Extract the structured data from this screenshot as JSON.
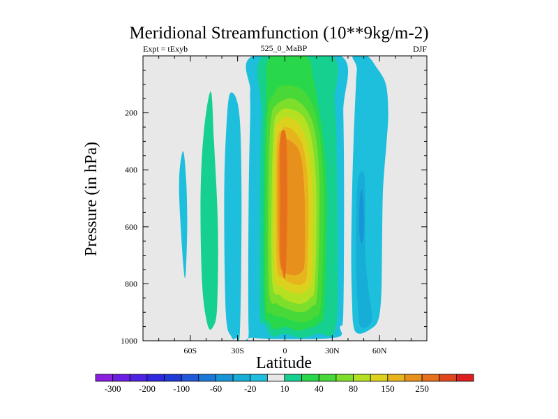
{
  "chart_data": {
    "type": "heatmap",
    "title": "Meridional Streamfunction (10**9kg/m-2)",
    "left_subtitle": "Expt = tExyb",
    "center_subtitle": "525_0_MaBP",
    "right_subtitle": "DJF",
    "xlabel": "Latitude",
    "ylabel": "Pressure (in hPa)",
    "xlim": [
      -90,
      90
    ],
    "ylim": [
      1000,
      0
    ],
    "x_ticks": [
      {
        "value": -60,
        "label": "60S"
      },
      {
        "value": -30,
        "label": "30S"
      },
      {
        "value": 0,
        "label": "0"
      },
      {
        "value": 30,
        "label": "30N"
      },
      {
        "value": 60,
        "label": "60N"
      }
    ],
    "y_ticks": [
      {
        "value": 200,
        "label": "200"
      },
      {
        "value": 400,
        "label": "400"
      },
      {
        "value": 600,
        "label": "600"
      },
      {
        "value": 800,
        "label": "800"
      },
      {
        "value": 1000,
        "label": "1000"
      }
    ],
    "colorbar": {
      "colors": [
        "#8a1fe0",
        "#6a1ee4",
        "#4e22e2",
        "#3027de",
        "#1f3ad6",
        "#1f58d8",
        "#1c78d8",
        "#1895d6",
        "#16aed6",
        "#1ebfdc",
        "#e8e8e8",
        "#16d090",
        "#28d84a",
        "#48d838",
        "#7ede2c",
        "#b6e022",
        "#dcd21e",
        "#e8b41e",
        "#e8901c",
        "#e6701c",
        "#e2461c",
        "#de1e1e"
      ],
      "labels": [
        {
          "after": 1,
          "text": "-300"
        },
        {
          "after": 3,
          "text": "-200"
        },
        {
          "after": 5,
          "text": "-100"
        },
        {
          "after": 7,
          "text": "-60"
        },
        {
          "after": 9,
          "text": "-20"
        },
        {
          "after": 11,
          "text": "10"
        },
        {
          "after": 13,
          "text": "40"
        },
        {
          "after": 15,
          "text": "80"
        },
        {
          "after": 17,
          "text": "150"
        },
        {
          "after": 19,
          "text": "250"
        }
      ]
    },
    "background_color": "#e8e8e8",
    "contour_regions": [
      {
        "color_index": 9,
        "outline": [
          [
            -63.5,
            780
          ],
          [
            -66.5,
            560
          ],
          [
            -67,
            420
          ],
          [
            -64.5,
            335
          ],
          [
            -62.5,
            450
          ],
          [
            -62,
            620
          ]
        ]
      },
      {
        "color_index": 11,
        "outline": [
          [
            -49,
            945
          ],
          [
            -52.5,
            800
          ],
          [
            -53.5,
            500
          ],
          [
            -51.5,
            270
          ],
          [
            -47,
            125
          ],
          [
            -45,
            300
          ],
          [
            -42.5,
            600
          ],
          [
            -43,
            880
          ],
          [
            -45.5,
            950
          ]
        ]
      },
      {
        "color_index": 9,
        "outline": [
          [
            -34,
            985
          ],
          [
            -37.5,
            900
          ],
          [
            -38.5,
            500
          ],
          [
            -37,
            240
          ],
          [
            -34.5,
            130
          ],
          [
            -29,
            200
          ],
          [
            -27.5,
            500
          ],
          [
            -28.5,
            960
          ],
          [
            -31,
            990
          ]
        ]
      },
      {
        "color_index": 9,
        "outline": [
          [
            -20,
            0
          ],
          [
            -22,
            120
          ],
          [
            -22,
            200
          ],
          [
            -23,
            500
          ],
          [
            -23,
            960
          ],
          [
            -20,
            990
          ],
          [
            31,
            990
          ],
          [
            35,
            950
          ],
          [
            37,
            900
          ],
          [
            37.5,
            500
          ],
          [
            37,
            200
          ],
          [
            35.5,
            0
          ]
        ]
      },
      {
        "color_index": 11,
        "outline": [
          [
            -14,
            0
          ],
          [
            -15,
            200
          ],
          [
            -16,
            500
          ],
          [
            -16,
            900
          ],
          [
            -13,
            940
          ],
          [
            -8,
            985
          ],
          [
            0,
            975
          ],
          [
            10,
            990
          ],
          [
            21,
            975
          ],
          [
            32,
            960
          ],
          [
            33.5,
            700
          ],
          [
            33,
            400
          ],
          [
            32.5,
            250
          ],
          [
            32,
            200
          ],
          [
            31.5,
            150
          ],
          [
            30,
            0
          ]
        ]
      },
      {
        "color_index": 12,
        "outline": [
          [
            -9,
            0
          ],
          [
            -12,
            150
          ],
          [
            -13,
            500
          ],
          [
            -13,
            880
          ],
          [
            -10,
            935
          ],
          [
            -6,
            960
          ],
          [
            0,
            950
          ],
          [
            8,
            965
          ],
          [
            15,
            955
          ],
          [
            21,
            940
          ],
          [
            25,
            880
          ],
          [
            26.5,
            500
          ],
          [
            24.5,
            300
          ],
          [
            20,
            140
          ],
          [
            18,
            80
          ],
          [
            13,
            0
          ]
        ]
      },
      {
        "color_index": 13,
        "outline": [
          [
            -7,
            135
          ],
          [
            -11,
            200
          ],
          [
            -12,
            500
          ],
          [
            -12,
            860
          ],
          [
            -8,
            905
          ],
          [
            0,
            920
          ],
          [
            10,
            935
          ],
          [
            18,
            920
          ],
          [
            23,
            860
          ],
          [
            24.5,
            500
          ],
          [
            22.5,
            300
          ],
          [
            18,
            180
          ],
          [
            10,
            115
          ],
          [
            -2,
            105
          ]
        ]
      },
      {
        "color_index": 14,
        "outline": [
          [
            -5,
            170
          ],
          [
            -9,
            230
          ],
          [
            -10.5,
            500
          ],
          [
            -10,
            830
          ],
          [
            -5,
            870
          ],
          [
            0,
            885
          ],
          [
            10,
            900
          ],
          [
            17,
            880
          ],
          [
            20.5,
            830
          ],
          [
            22,
            500
          ],
          [
            20,
            300
          ],
          [
            15,
            200
          ],
          [
            5,
            150
          ]
        ]
      },
      {
        "color_index": 15,
        "outline": [
          [
            -4,
            200
          ],
          [
            -7,
            250
          ],
          [
            -8.5,
            500
          ],
          [
            -8,
            800
          ],
          [
            -3,
            840
          ],
          [
            2,
            860
          ],
          [
            10,
            870
          ],
          [
            16,
            850
          ],
          [
            19,
            800
          ],
          [
            20,
            500
          ],
          [
            17.5,
            310
          ],
          [
            12,
            215
          ],
          [
            2,
            185
          ]
        ]
      },
      {
        "color_index": 16,
        "outline": [
          [
            -3,
            230
          ],
          [
            -6,
            270
          ],
          [
            -7,
            500
          ],
          [
            -6.5,
            770
          ],
          [
            -2,
            810
          ],
          [
            4,
            830
          ],
          [
            10,
            835
          ],
          [
            15,
            815
          ],
          [
            17,
            770
          ],
          [
            17.5,
            500
          ],
          [
            15,
            330
          ],
          [
            9,
            240
          ],
          [
            1,
            215
          ]
        ]
      },
      {
        "color_index": 17,
        "outline": [
          [
            -2,
            260
          ],
          [
            -5,
            300
          ],
          [
            -5.5,
            500
          ],
          [
            -5,
            740
          ],
          [
            -1,
            780
          ],
          [
            5,
            800
          ],
          [
            11,
            800
          ],
          [
            14,
            760
          ],
          [
            15,
            500
          ],
          [
            12,
            330
          ],
          [
            6,
            265
          ],
          [
            0,
            250
          ]
        ]
      },
      {
        "color_index": 18,
        "outline": [
          [
            -2,
            295
          ],
          [
            -4,
            330
          ],
          [
            -4.5,
            500
          ],
          [
            -3.5,
            720
          ],
          [
            0,
            760
          ],
          [
            6,
            770
          ],
          [
            10,
            760
          ],
          [
            12.5,
            720
          ],
          [
            12.5,
            500
          ],
          [
            10,
            350
          ],
          [
            4,
            300
          ]
        ]
      },
      {
        "color_index": 19,
        "outline": [
          [
            -1,
            260
          ],
          [
            -3,
            300
          ],
          [
            -3,
            500
          ],
          [
            -3,
            700
          ],
          [
            -1.5,
            760
          ],
          [
            0,
            780
          ],
          [
            1,
            700
          ],
          [
            1.5,
            500
          ],
          [
            1,
            300
          ]
        ]
      },
      {
        "color_index": 9,
        "outline": [
          [
            43,
            0
          ],
          [
            45.5,
            40
          ],
          [
            45,
            100
          ],
          [
            43.5,
            300
          ],
          [
            42.5,
            500
          ],
          [
            42,
            700
          ],
          [
            42.5,
            850
          ],
          [
            43.5,
            950
          ],
          [
            47,
            975
          ],
          [
            54,
            960
          ],
          [
            59,
            930
          ],
          [
            61,
            850
          ],
          [
            61.5,
            700
          ],
          [
            62,
            500
          ],
          [
            63,
            400
          ],
          [
            64.5,
            300
          ],
          [
            65.5,
            200
          ],
          [
            64,
            100
          ],
          [
            58,
            40
          ],
          [
            52,
            0
          ]
        ]
      },
      {
        "color_index": 8,
        "outline": [
          [
            48,
            950
          ],
          [
            46,
            860
          ],
          [
            45,
            700
          ],
          [
            45.5,
            500
          ],
          [
            47,
            420
          ],
          [
            50,
            410
          ],
          [
            51,
            500
          ],
          [
            51,
            700
          ],
          [
            53,
            820
          ],
          [
            55,
            930
          ]
        ]
      },
      {
        "color_index": 7,
        "outline": [
          [
            47,
            600
          ],
          [
            47.5,
            500
          ],
          [
            49,
            470
          ],
          [
            50,
            540
          ],
          [
            50,
            620
          ],
          [
            48.5,
            660
          ]
        ]
      }
    ]
  }
}
